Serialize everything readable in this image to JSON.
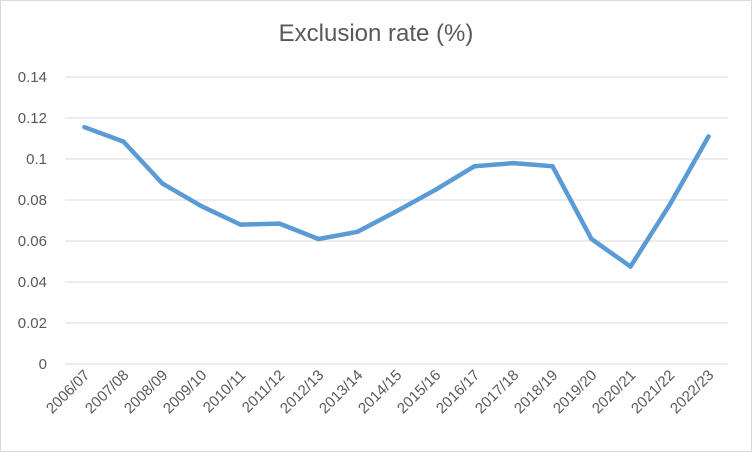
{
  "chart_data": {
    "type": "line",
    "title": "Exclusion rate (%)",
    "xlabel": "",
    "ylabel": "",
    "categories": [
      "2006/07",
      "2007/08",
      "2008/09",
      "2009/10",
      "2010/11",
      "2011/12",
      "2012/13",
      "2013/14",
      "2014/15",
      "2015/16",
      "2016/17",
      "2017/18",
      "2018/19",
      "2019/20",
      "2020/21",
      "2021/22",
      "2022/23"
    ],
    "series": [
      {
        "values": [
          0.1155,
          0.1085,
          0.088,
          0.077,
          0.068,
          0.0685,
          0.061,
          0.0645,
          0.0745,
          0.085,
          0.0965,
          0.098,
          0.0965,
          0.061,
          0.0475,
          0.0775,
          0.111
        ]
      }
    ],
    "ylim": [
      0,
      0.14
    ],
    "yticks": [
      "0",
      "0.02",
      "0.04",
      "0.06",
      "0.08",
      "0.1",
      "0.12",
      "0.14"
    ],
    "ytick_values": [
      0,
      0.02,
      0.04,
      0.06,
      0.08,
      0.1,
      0.12,
      0.14
    ],
    "grid": true,
    "legend": "none",
    "colors": {
      "line": "#5b9bd5",
      "grid": "#d9d9d9",
      "text": "#595959"
    }
  }
}
